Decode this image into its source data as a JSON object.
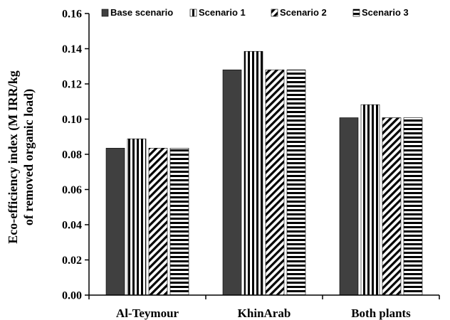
{
  "chart_data": {
    "type": "bar",
    "categories": [
      "Al-Teymour",
      "KhinArab",
      "Both plants"
    ],
    "series": [
      {
        "name": "Base scenario",
        "pattern": "solid",
        "values": [
          0.0835,
          0.128,
          0.1008
        ]
      },
      {
        "name": "Scenario 1",
        "pattern": "vertical",
        "values": [
          0.0888,
          0.1385,
          0.1082
        ]
      },
      {
        "name": "Scenario 2",
        "pattern": "diagonal",
        "values": [
          0.0835,
          0.128,
          0.1008
        ]
      },
      {
        "name": "Scenario 3",
        "pattern": "horizontal",
        "values": [
          0.0835,
          0.128,
          0.1008
        ]
      }
    ],
    "ylabel_lines": [
      "Eco-efficiency index (M IRR/kg",
      "of removed organic load)"
    ],
    "xlabel": "",
    "ylim": [
      0,
      0.16
    ],
    "yticks": [
      "0.00",
      "0.02",
      "0.04",
      "0.06",
      "0.08",
      "0.10",
      "0.12",
      "0.14",
      "0.16"
    ],
    "grid": false,
    "legend_position": "top",
    "colors": {
      "bar": "#404040",
      "pattern": "#000000",
      "axis": "#000000"
    }
  }
}
